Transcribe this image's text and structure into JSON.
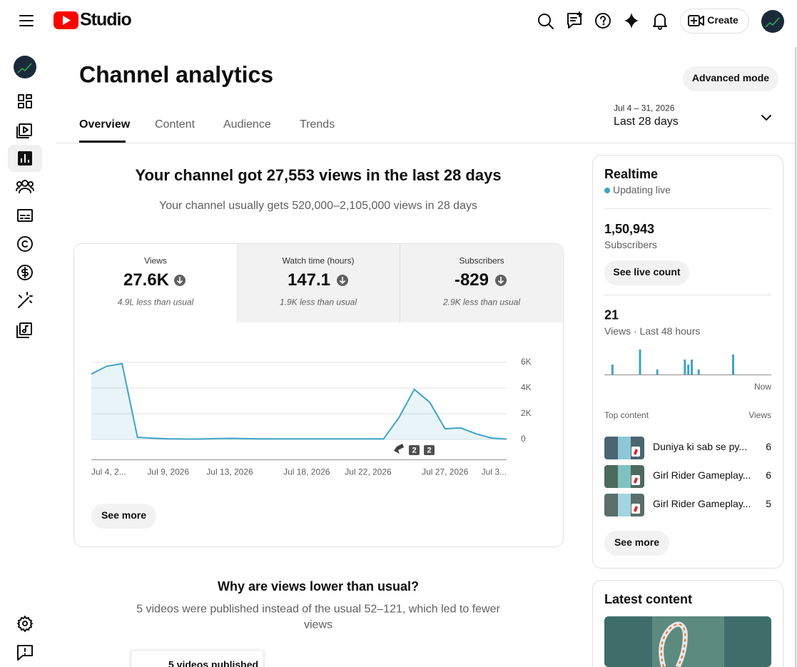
{
  "header": {
    "logo_text": "Studio",
    "create": "Create"
  },
  "page": {
    "title": "Channel analytics",
    "advanced_mode": "Advanced mode"
  },
  "tabs": [
    "Overview",
    "Content",
    "Audience",
    "Trends"
  ],
  "date_range": {
    "dates": "Jul 4 – 31, 2026",
    "label": "Last 28 days"
  },
  "summary": {
    "headline": "Your channel got 27,553 views in the last 28 days",
    "subtext": "Your channel usually gets 520,000–2,105,000 views in 28 days"
  },
  "metrics": [
    {
      "label": "Views",
      "value": "27.6K",
      "note": "4.9L less than usual"
    },
    {
      "label": "Watch time (hours)",
      "value": "147.1",
      "note": "1.9K less than usual"
    },
    {
      "label": "Subscribers",
      "value": "-829",
      "note": "2.9K less than usual"
    }
  ],
  "chart_data": [
    {
      "type": "line",
      "categories": [
        "Jul 4, 2...",
        null,
        null,
        null,
        null,
        "Jul 9, 2026",
        null,
        null,
        null,
        "Jul 13, 2026",
        null,
        null,
        null,
        null,
        "Jul 18, 2026",
        null,
        null,
        null,
        "Jul 22, 2026",
        null,
        null,
        null,
        null,
        "Jul 27, 2026",
        null,
        null,
        null,
        "Jul 3..."
      ],
      "values": [
        5100,
        5700,
        5900,
        170,
        100,
        50,
        30,
        30,
        60,
        80,
        60,
        40,
        40,
        40,
        40,
        40,
        40,
        40,
        40,
        40,
        1700,
        3900,
        2900,
        830,
        900,
        450,
        110,
        30
      ],
      "color": "#3ea3c6",
      "ylim": [
        0,
        6000
      ],
      "yticks": [
        0,
        {
          "value": 2000,
          "label": "2K"
        },
        {
          "value": 4000,
          "label": "4K"
        },
        {
          "value": 6000,
          "label": "6K"
        }
      ],
      "grid": true,
      "annotations": [
        "2",
        "2"
      ]
    },
    {
      "type": "bar",
      "categories": [
        null,
        null,
        null,
        null,
        null,
        null,
        null,
        null,
        null,
        null,
        null,
        null,
        null,
        null,
        null,
        null,
        null,
        null,
        null,
        null,
        null,
        null,
        null,
        null,
        null,
        null,
        null,
        null,
        null,
        null,
        null,
        null,
        null,
        null,
        null,
        null,
        null,
        null,
        null,
        null,
        null,
        null,
        null,
        null,
        null,
        null,
        null,
        "Now"
      ],
      "values": [
        0,
        2,
        0,
        0,
        0,
        0,
        0,
        0,
        0,
        5,
        0,
        0,
        0,
        0,
        1,
        0,
        0,
        0,
        0,
        0,
        0,
        0,
        3,
        2,
        3,
        0,
        1,
        0,
        0,
        0,
        0,
        0,
        0,
        0,
        0,
        0,
        4,
        0,
        0,
        0,
        0,
        0,
        0,
        0,
        0,
        0,
        0,
        0
      ],
      "color": "#3ea3c6",
      "ylim": [
        0,
        5
      ]
    }
  ],
  "see_more": "See more",
  "why": {
    "title": "Why are views lower than usual?",
    "lines": [
      "5 videos were published instead of the usual 52–121, which led to fewer",
      "views"
    ],
    "card": "5 videos published"
  },
  "realtime": {
    "title": "Realtime",
    "status": "Updating live",
    "subscribers_count": "1,50,943",
    "subscribers_label": "Subscribers",
    "see_live_count": "See live count",
    "views_count": "21",
    "views_label": "Views · Last 48 hours",
    "top_content_label": "Top content",
    "views_header": "Views",
    "items": [
      {
        "title": "Duniya ki sab se py...",
        "views": "6"
      },
      {
        "title": "Girl Rider Gameplay...",
        "views": "6"
      },
      {
        "title": "Girl Rider Gameplay...",
        "views": "5"
      }
    ]
  },
  "latest": {
    "title": "Latest content"
  }
}
